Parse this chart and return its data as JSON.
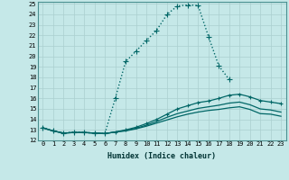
{
  "xlabel": "Humidex (Indice chaleur)",
  "bg_color": "#c5e8e8",
  "grid_color": "#aacfcf",
  "line_color": "#006666",
  "xlim": [
    -0.5,
    23.5
  ],
  "ylim": [
    12,
    25.2
  ],
  "ytick_values": [
    12,
    13,
    14,
    15,
    16,
    17,
    18,
    19,
    20,
    21,
    22,
    23,
    24,
    25
  ],
  "series": [
    {
      "x": [
        0,
        1,
        2,
        3,
        4,
        5,
        6,
        7,
        8,
        9,
        10,
        11,
        12,
        13,
        14,
        15,
        16,
        17,
        18
      ],
      "y": [
        13.2,
        12.9,
        12.7,
        12.8,
        12.75,
        12.7,
        12.65,
        16.0,
        19.5,
        20.5,
        21.5,
        22.5,
        24.0,
        24.8,
        24.9,
        24.85,
        21.9,
        19.1,
        17.8
      ],
      "linestyle": ":",
      "linewidth": 1.0,
      "marker": "+",
      "markersize": 4
    },
    {
      "x": [
        0,
        1,
        2,
        3,
        4,
        5,
        6,
        7,
        8,
        9,
        10,
        11,
        12,
        13,
        14,
        15,
        16,
        17,
        18,
        19,
        20,
        21,
        22,
        23
      ],
      "y": [
        13.2,
        12.9,
        12.7,
        12.75,
        12.75,
        12.7,
        12.65,
        12.8,
        13.0,
        13.25,
        13.6,
        14.0,
        14.5,
        15.0,
        15.3,
        15.6,
        15.75,
        16.0,
        16.3,
        16.4,
        16.15,
        15.8,
        15.65,
        15.5
      ],
      "linestyle": "-",
      "linewidth": 0.9,
      "marker": "+",
      "markersize": 3
    },
    {
      "x": [
        0,
        1,
        2,
        3,
        4,
        5,
        6,
        7,
        8,
        9,
        10,
        11,
        12,
        13,
        14,
        15,
        16,
        17,
        18,
        19,
        20,
        21,
        22,
        23
      ],
      "y": [
        13.2,
        12.9,
        12.7,
        12.75,
        12.75,
        12.7,
        12.65,
        12.8,
        12.95,
        13.15,
        13.45,
        13.8,
        14.2,
        14.55,
        14.8,
        15.05,
        15.2,
        15.35,
        15.55,
        15.65,
        15.4,
        15.0,
        14.9,
        14.7
      ],
      "linestyle": "-",
      "linewidth": 0.9,
      "marker": null,
      "markersize": 0
    },
    {
      "x": [
        0,
        1,
        2,
        3,
        4,
        5,
        6,
        7,
        8,
        9,
        10,
        11,
        12,
        13,
        14,
        15,
        16,
        17,
        18,
        19,
        20,
        21,
        22,
        23
      ],
      "y": [
        13.2,
        12.9,
        12.7,
        12.75,
        12.75,
        12.7,
        12.65,
        12.8,
        12.9,
        13.1,
        13.35,
        13.65,
        13.95,
        14.25,
        14.5,
        14.7,
        14.85,
        14.95,
        15.1,
        15.2,
        14.95,
        14.55,
        14.5,
        14.3
      ],
      "linestyle": "-",
      "linewidth": 0.9,
      "marker": null,
      "markersize": 0
    }
  ]
}
